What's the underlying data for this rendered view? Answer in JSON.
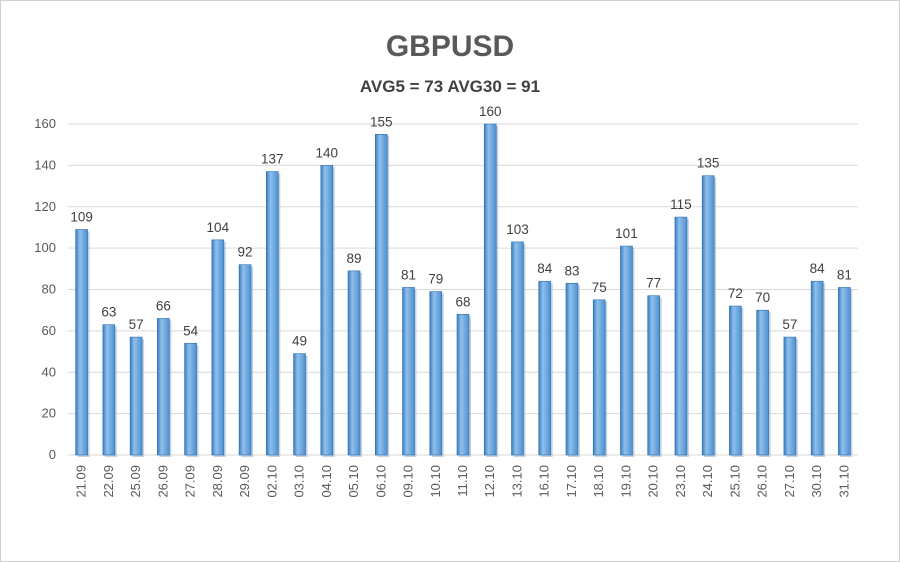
{
  "chart_data": {
    "type": "bar",
    "title": "GBPUSD",
    "subtitle": "AVG5 = 73 AVG30 = 91",
    "categories": [
      "21.09",
      "22.09",
      "25.09",
      "26.09",
      "27.09",
      "28.09",
      "29.09",
      "02.10",
      "03.10",
      "04.10",
      "05.10",
      "06.10",
      "09.10",
      "10.10",
      "11.10",
      "12.10",
      "13.10",
      "16.10",
      "17.10",
      "18.10",
      "19.10",
      "20.10",
      "23.10",
      "24.10",
      "25.10",
      "26.10",
      "27.10",
      "30.10",
      "31.10"
    ],
    "values": [
      109,
      63,
      57,
      66,
      54,
      104,
      92,
      137,
      49,
      140,
      89,
      155,
      81,
      79,
      68,
      160,
      103,
      84,
      83,
      75,
      101,
      77,
      115,
      135,
      72,
      70,
      57,
      84,
      81
    ],
    "ylim": [
      0,
      160
    ],
    "yticks": [
      0,
      20,
      40,
      60,
      80,
      100,
      120,
      140,
      160
    ],
    "grid": true,
    "colors": {
      "bar": "#5b9bd5",
      "bar_light": "#8fbfea",
      "bar_dark": "#2e6fb0",
      "grid": "#d9d9d9"
    }
  }
}
